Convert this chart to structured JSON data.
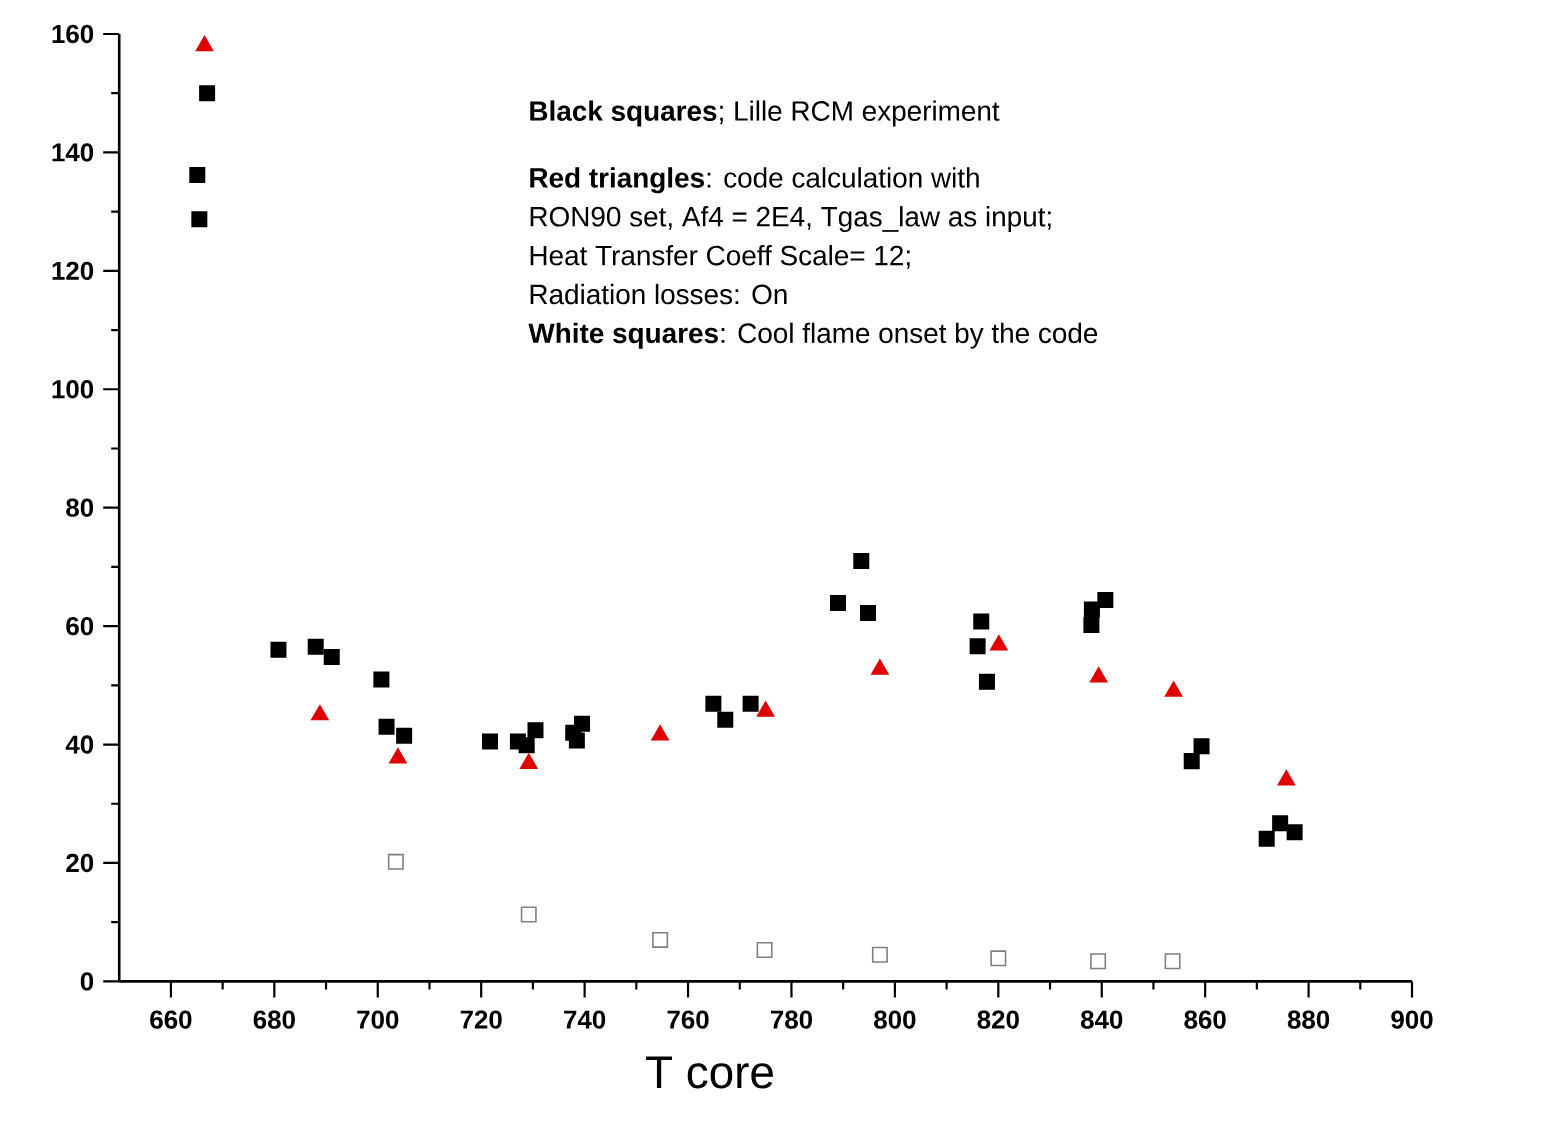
{
  "chart_data": {
    "type": "scatter",
    "xlabel": "T core",
    "xlim": [
      650,
      900
    ],
    "ylim": [
      0,
      160
    ],
    "xticks": [
      660,
      680,
      700,
      720,
      740,
      760,
      780,
      800,
      820,
      840,
      860,
      880,
      900
    ],
    "yticks": [
      0,
      20,
      40,
      60,
      80,
      100,
      120,
      140,
      160
    ],
    "grid": false,
    "series": [
      {
        "color": "#000000",
        "marker": "square",
        "x": [
          667.0,
          665.1,
          665.5,
          680.8,
          688.0,
          691.1,
          700.7,
          701.7,
          705.1,
          721.7,
          727.1,
          728.8,
          730.5,
          737.8,
          738.5,
          739.5,
          764.9,
          767.2,
          772.1,
          789.0,
          793.5,
          794.8,
          816.7,
          816.0,
          817.8,
          840.7,
          838.1,
          838.0,
          859.3,
          857.4,
          871.9,
          874.5,
          877.3
        ],
        "values": [
          150,
          136.2,
          128.7,
          56,
          56.5,
          54.8,
          51,
          43,
          41.5,
          40.5,
          40.5,
          39.9,
          42.4,
          42,
          40.7,
          43.5,
          46.9,
          44.2,
          46.9,
          63.9,
          71,
          62.2,
          60.8,
          56.6,
          50.6,
          64.4,
          62.8,
          60.2,
          39.7,
          37.2,
          24.1,
          26.7,
          25.2
        ]
      },
      {
        "color": "#e00000",
        "marker": "triangle",
        "x": [
          666.5,
          688.8,
          703.9,
          729.2,
          754.6,
          775.0,
          797.1,
          820.1,
          839.4,
          853.9,
          875.7
        ],
        "values": [
          158,
          45,
          37.7,
          36.8,
          41.6,
          45.6,
          52.7,
          56.8,
          51.4,
          49,
          34
        ]
      },
      {
        "color": "#ffffff",
        "marker": "square",
        "x": [
          703.5,
          729.2,
          754.6,
          774.8,
          797.1,
          820.0,
          839.3,
          853.7
        ],
        "values": [
          20.2,
          11.3,
          7,
          5.3,
          4.5,
          3.9,
          3.4,
          3.4
        ]
      }
    ],
    "annotations": [
      "**Black squares**; Lille RCM experiment",
      "**Red triangles**: code calculation with",
      "RON90 set, Af4 = 2E4, Tgas_law as input;",
      "Heat Transfer Coeff Scale= 12;",
      "Radiation losses: On",
      "**White squares**: Cool flame onset by the code"
    ]
  }
}
